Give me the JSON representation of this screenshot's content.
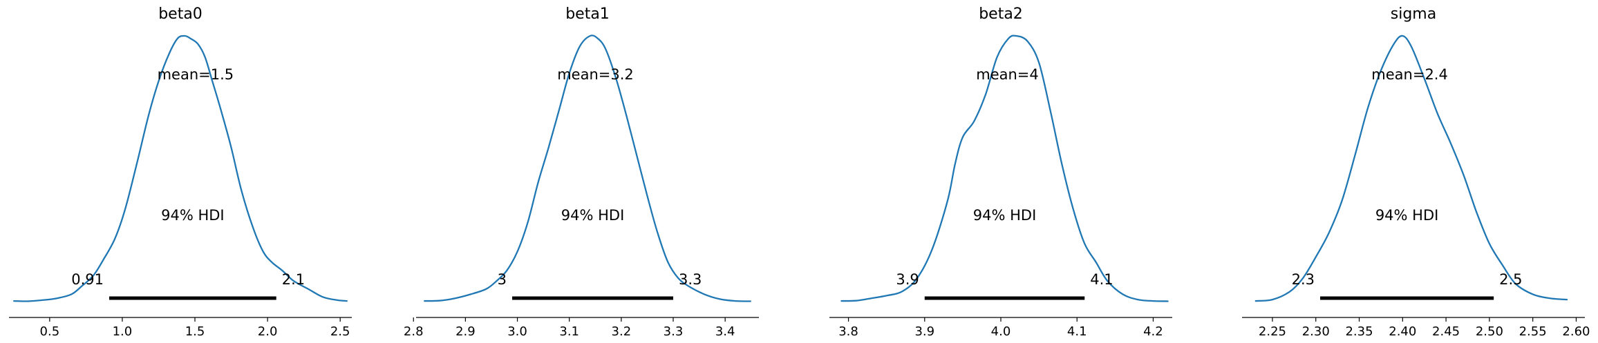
{
  "chart_data": [
    {
      "type": "line",
      "title": "beta0",
      "mean_label": "mean=1.5",
      "hdi_label": "94% HDI",
      "hdi_low_label": "0.91",
      "hdi_high_label": "2.1",
      "hdi": [
        0.91,
        2.06
      ],
      "xlim": [
        0.22,
        2.58
      ],
      "xticks": [
        0.5,
        1.0,
        1.5,
        2.0,
        2.5
      ],
      "xtick_labels": [
        "0.5",
        "1.0",
        "1.5",
        "2.0",
        "2.5"
      ],
      "x": [
        0.25,
        0.35,
        0.45,
        0.55,
        0.65,
        0.72,
        0.8,
        0.87,
        0.95,
        1.02,
        1.1,
        1.18,
        1.25,
        1.32,
        1.38,
        1.43,
        1.47,
        1.52,
        1.57,
        1.62,
        1.68,
        1.75,
        1.82,
        1.9,
        1.97,
        2.03,
        2.1,
        2.18,
        2.28,
        2.38,
        2.48,
        2.55
      ],
      "density": [
        0.005,
        0.004,
        0.008,
        0.015,
        0.03,
        0.06,
        0.1,
        0.16,
        0.24,
        0.35,
        0.52,
        0.7,
        0.83,
        0.93,
        0.99,
        1.0,
        0.99,
        0.97,
        0.92,
        0.83,
        0.72,
        0.58,
        0.42,
        0.28,
        0.19,
        0.15,
        0.12,
        0.08,
        0.05,
        0.02,
        0.008,
        0.005
      ]
    },
    {
      "type": "line",
      "title": "beta1",
      "mean_label": "mean=3.2",
      "hdi_label": "94% HDI",
      "hdi_low_label": "3",
      "hdi_high_label": "3.3",
      "hdi": [
        2.99,
        3.3
      ],
      "xlim": [
        2.805,
        3.465
      ],
      "xticks": [
        2.8,
        2.9,
        3.0,
        3.1,
        3.2,
        3.3,
        3.4
      ],
      "xtick_labels": [
        "2.8",
        "2.9",
        "3.0",
        "3.1",
        "3.2",
        "3.3",
        "3.4"
      ],
      "x": [
        2.82,
        2.85,
        2.88,
        2.91,
        2.94,
        2.96,
        2.98,
        3.0,
        3.02,
        3.04,
        3.06,
        3.08,
        3.1,
        3.12,
        3.14,
        3.155,
        3.17,
        3.19,
        3.21,
        3.23,
        3.25,
        3.27,
        3.29,
        3.31,
        3.33,
        3.36,
        3.39,
        3.42,
        3.45
      ],
      "density": [
        0.005,
        0.006,
        0.015,
        0.03,
        0.05,
        0.08,
        0.12,
        0.19,
        0.3,
        0.45,
        0.58,
        0.72,
        0.86,
        0.96,
        1.0,
        0.99,
        0.95,
        0.84,
        0.7,
        0.55,
        0.4,
        0.26,
        0.15,
        0.09,
        0.06,
        0.03,
        0.012,
        0.005,
        0.004
      ]
    },
    {
      "type": "line",
      "title": "beta2",
      "mean_label": "mean=4",
      "hdi_label": "94% HDI",
      "hdi_low_label": "3.9",
      "hdi_high_label": "4.1",
      "hdi": [
        3.9,
        4.11
      ],
      "xlim": [
        3.775,
        4.225
      ],
      "xticks": [
        3.8,
        3.9,
        4.0,
        4.1,
        4.2
      ],
      "xtick_labels": [
        "3.8",
        "3.9",
        "4.0",
        "4.1",
        "4.2"
      ],
      "x": [
        3.79,
        3.81,
        3.83,
        3.85,
        3.87,
        3.89,
        3.91,
        3.93,
        3.94,
        3.95,
        3.965,
        3.98,
        3.995,
        4.01,
        4.02,
        4.035,
        4.05,
        4.065,
        4.08,
        4.095,
        4.11,
        4.125,
        4.14,
        4.16,
        4.18,
        4.2,
        4.22
      ],
      "density": [
        0.005,
        0.006,
        0.015,
        0.025,
        0.04,
        0.09,
        0.2,
        0.38,
        0.52,
        0.62,
        0.68,
        0.78,
        0.92,
        0.99,
        1.0,
        0.98,
        0.9,
        0.72,
        0.52,
        0.35,
        0.22,
        0.15,
        0.08,
        0.03,
        0.01,
        0.005,
        0.004
      ]
    },
    {
      "type": "line",
      "title": "sigma",
      "mean_label": "mean=2.4",
      "hdi_label": "94% HDI",
      "hdi_low_label": "2.3",
      "hdi_high_label": "2.5",
      "hdi": [
        2.305,
        2.505
      ],
      "xlim": [
        2.215,
        2.61
      ],
      "xticks": [
        2.25,
        2.3,
        2.35,
        2.4,
        2.45,
        2.5,
        2.55,
        2.6
      ],
      "xtick_labels": [
        "2.25",
        "2.30",
        "2.35",
        "2.40",
        "2.45",
        "2.50",
        "2.55",
        "2.60"
      ],
      "x": [
        2.23,
        2.25,
        2.27,
        2.285,
        2.3,
        2.315,
        2.33,
        2.345,
        2.36,
        2.375,
        2.39,
        2.4,
        2.41,
        2.425,
        2.44,
        2.455,
        2.47,
        2.485,
        2.5,
        2.515,
        2.53,
        2.55,
        2.57,
        2.59
      ],
      "density": [
        0.005,
        0.01,
        0.04,
        0.09,
        0.17,
        0.26,
        0.38,
        0.55,
        0.73,
        0.87,
        0.97,
        1.0,
        0.96,
        0.84,
        0.71,
        0.6,
        0.48,
        0.34,
        0.22,
        0.14,
        0.07,
        0.03,
        0.015,
        0.01
      ]
    }
  ]
}
